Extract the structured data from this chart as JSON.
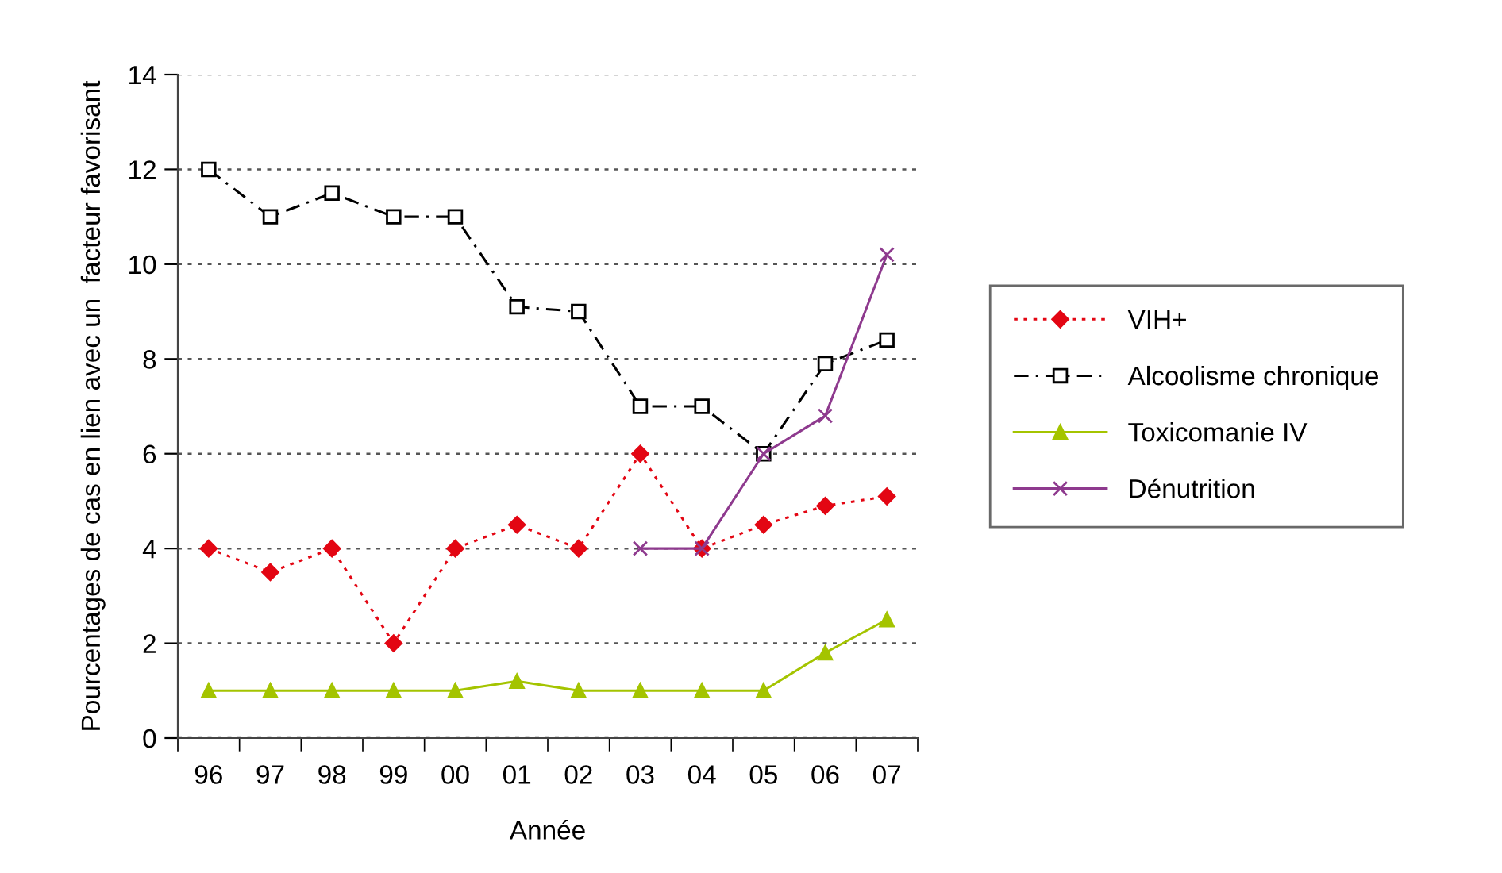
{
  "chart_data": {
    "type": "line",
    "xlabel": "Année",
    "ylabel": "Pourcentages de cas en lien avec un  facteur favorisant",
    "categories": [
      "96",
      "97",
      "98",
      "99",
      "00",
      "01",
      "02",
      "03",
      "04",
      "05",
      "06",
      "07"
    ],
    "series": [
      {
        "name": "VIH+",
        "color": "#e30613",
        "marker": "diamond",
        "line_style": "dotted",
        "values": [
          4,
          3.5,
          4,
          2,
          4,
          4.5,
          4,
          6,
          4,
          4.5,
          4.9,
          5.1
        ]
      },
      {
        "name": "Alcoolisme chronique",
        "color": "#000000",
        "marker": "square",
        "line_style": "dashed",
        "values": [
          12,
          11,
          11.5,
          11,
          11,
          9.1,
          9.0,
          7,
          7,
          6,
          7.9,
          8.4
        ]
      },
      {
        "name": "Toxicomanie IV",
        "color": "#a4c400",
        "marker": "triangle",
        "line_style": "solid",
        "values": [
          1,
          1,
          1,
          1,
          1,
          1.2,
          1,
          1,
          1,
          1,
          1.8,
          2.5
        ]
      },
      {
        "name": "Dénutrition",
        "color": "#8e3a8e",
        "marker": "cross",
        "line_style": "solid",
        "values": [
          null,
          null,
          null,
          null,
          null,
          null,
          null,
          4,
          4,
          6,
          6.8,
          10.2
        ]
      }
    ],
    "ylim": [
      0,
      14
    ],
    "yticks": [
      0,
      2,
      4,
      6,
      8,
      10,
      12,
      14
    ],
    "grid": "y",
    "legend": "right"
  }
}
